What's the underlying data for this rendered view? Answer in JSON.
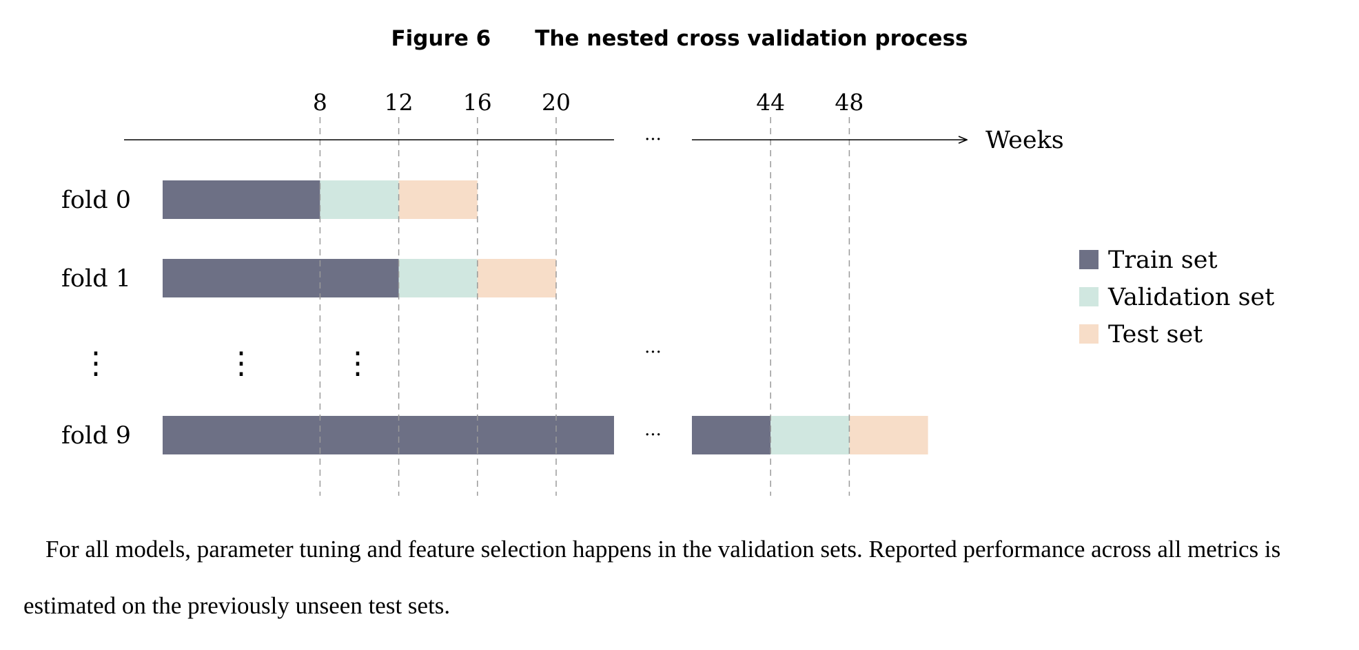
{
  "figure": {
    "number": "Figure 6",
    "title": "The nested cross validation process"
  },
  "axis": {
    "label": "Weeks",
    "break_ellipsis": "···",
    "ticks": [
      8,
      12,
      16,
      20,
      44,
      48
    ]
  },
  "folds": [
    {
      "label": "fold 0",
      "train": [
        0,
        8
      ],
      "validation": [
        8,
        12
      ],
      "test": [
        12,
        16
      ]
    },
    {
      "label": "fold 1",
      "train": [
        0,
        12
      ],
      "validation": [
        12,
        16
      ],
      "test": [
        16,
        20
      ]
    },
    {
      "label": "fold 9",
      "train": [
        0,
        44
      ],
      "validation": [
        44,
        48
      ],
      "test": [
        48,
        52
      ]
    }
  ],
  "ellipsis_row": {
    "vertical": "⋮",
    "horizontal": "···"
  },
  "legend": [
    {
      "key": "train",
      "label": "Train set",
      "color": "#6d7085"
    },
    {
      "key": "validation",
      "label": "Validation set",
      "color": "#d0e7e0"
    },
    {
      "key": "test",
      "label": "Test set",
      "color": "#f7ddc8"
    }
  ],
  "caption": "For all models, parameter tuning and feature selection happens in the validation sets. Reported performance across all metrics is estimated on the previously unseen test sets."
}
